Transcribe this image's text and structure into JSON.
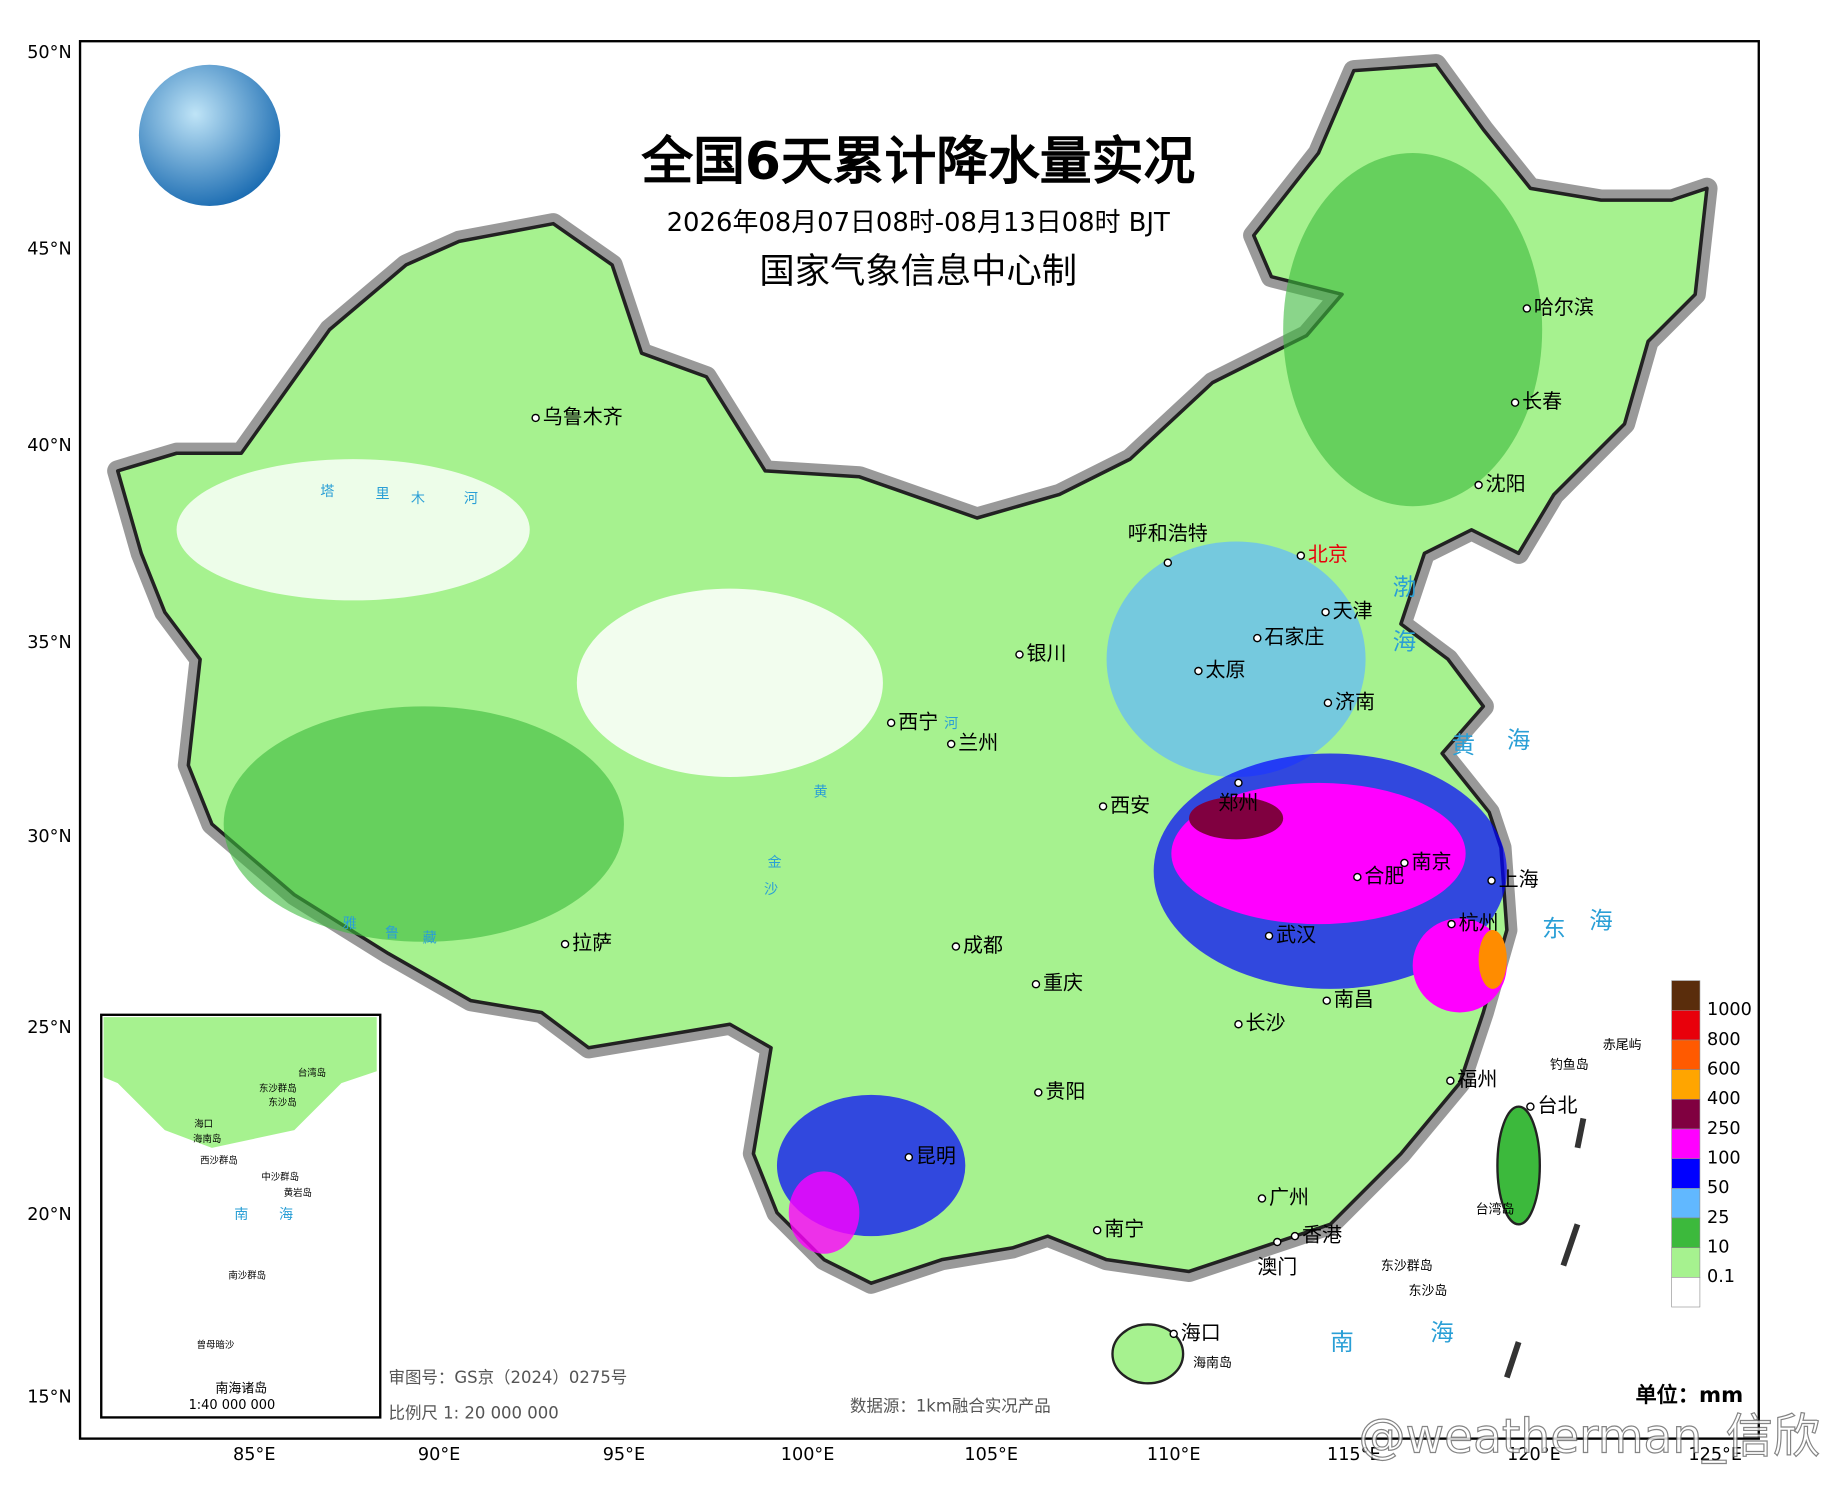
{
  "header": {
    "title": "全国6天累计降水量实况",
    "subtitle": "2026年08月07日08时-08月13日08时 BJT",
    "producer": "国家气象信息中心制"
  },
  "axes": {
    "latitude": [
      "50°N",
      "45°N",
      "40°N",
      "35°N",
      "30°N",
      "25°N",
      "20°N",
      "15°N"
    ],
    "longitude": [
      "85°E",
      "90°E",
      "95°E",
      "100°E",
      "105°E",
      "110°E",
      "115°E",
      "120°E",
      "125°E"
    ]
  },
  "legend": {
    "labels": [
      "1000",
      "800",
      "600",
      "400",
      "250",
      "100",
      "50",
      "25",
      "10",
      "0.1"
    ],
    "colors": [
      "#5a2d0c",
      "#e8000b",
      "#ff5a00",
      "#ffa500",
      "#800040",
      "#ff00ff",
      "#0000ff",
      "#61b8ff",
      "#3cb93c",
      "#a6f28f",
      "#ffffff"
    ],
    "unit": "单位：mm"
  },
  "cities": [
    "乌鲁木齐",
    "哈尔滨",
    "长春",
    "沈阳",
    "呼和浩特",
    "北京",
    "天津",
    "石家庄",
    "银川",
    "太原",
    "济南",
    "西宁",
    "兰州",
    "西安",
    "郑州",
    "合肥",
    "南京",
    "上海",
    "拉萨",
    "成都",
    "武汉",
    "杭州",
    "重庆",
    "南昌",
    "长沙",
    "贵阳",
    "福州",
    "台北",
    "昆明",
    "广州",
    "南宁",
    "香港",
    "澳门",
    "海口"
  ],
  "islands": [
    "海南岛",
    "台湾岛",
    "钓鱼岛",
    "赤尾屿",
    "东沙群岛",
    "东沙岛"
  ],
  "seas": [
    "渤",
    "海",
    "黄",
    "海",
    "东",
    "海",
    "南",
    "海"
  ],
  "rivers": [
    "塔",
    "里",
    "木",
    "河",
    "黄",
    "河",
    "金",
    "沙",
    "雅",
    "鲁",
    "藏"
  ],
  "inset": {
    "labels": [
      "台湾岛",
      "东沙群岛",
      "东沙岛",
      "海口",
      "海南岛",
      "西沙群岛",
      "中沙群岛",
      "黄岩岛",
      "南",
      "海",
      "南沙群岛",
      "曾母暗沙"
    ],
    "title": "南海诸岛",
    "scale": "1:40 000 000"
  },
  "footer": {
    "approval": "审图号：GS京（2024）0275号",
    "scale": "比例尺 1: 20 000 000",
    "source": "数据源：1km融合实况产品"
  },
  "watermark": "@weatherman_信欣"
}
